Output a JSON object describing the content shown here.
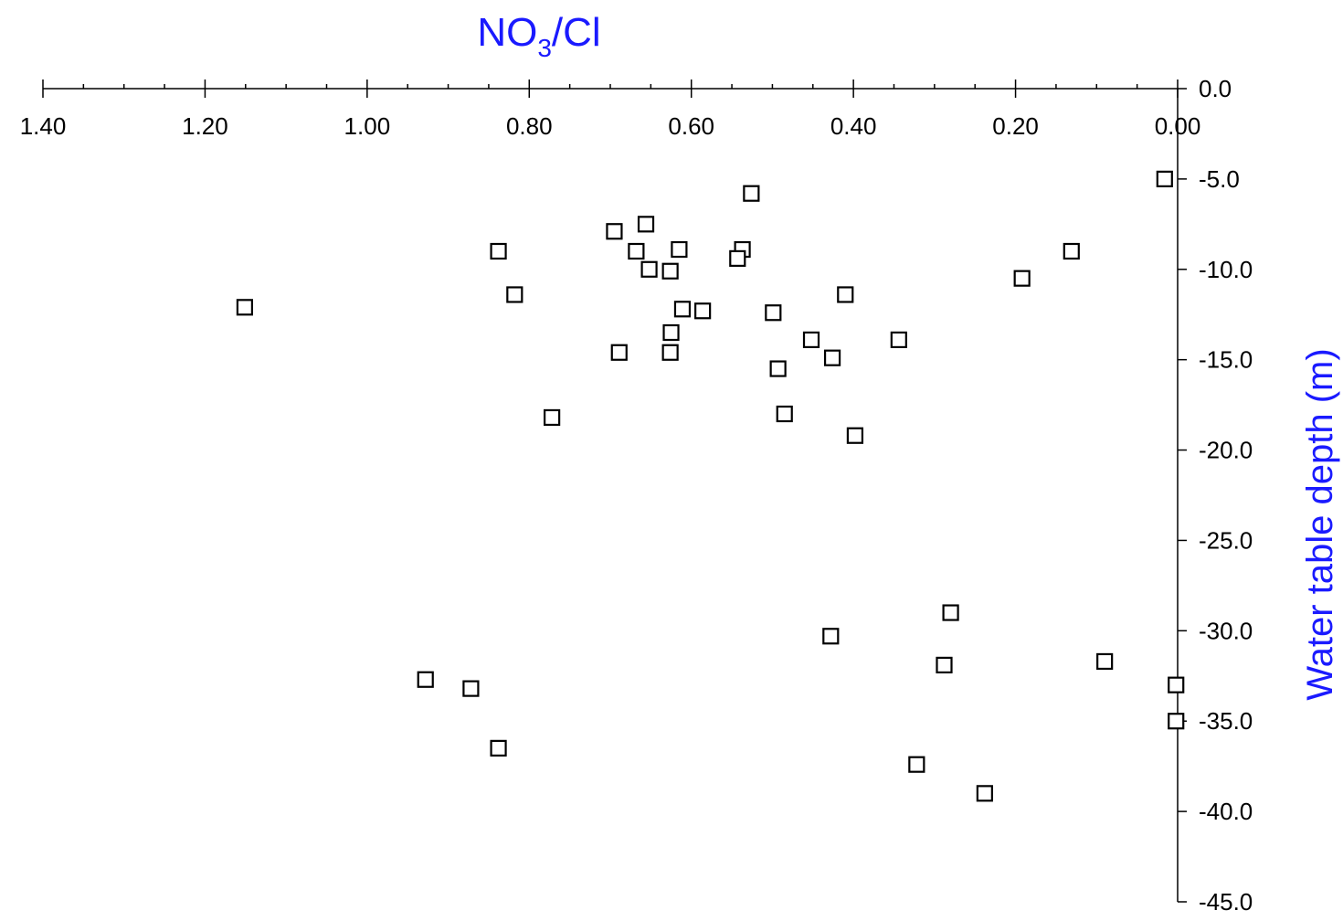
{
  "chart_data": {
    "type": "scatter",
    "title": {
      "main": "NO",
      "sub": "3",
      "tail": "/Cl"
    },
    "xlabel": "",
    "ylabel": "Water table depth (m)",
    "x_axis_position": "top",
    "y_axis_position": "right",
    "x_reversed": true,
    "xlim": [
      0,
      1.4
    ],
    "ylim": [
      -45,
      0
    ],
    "x_ticks": [
      {
        "value": 1.4,
        "label": "1.40"
      },
      {
        "value": 1.2,
        "label": "1.20"
      },
      {
        "value": 1.0,
        "label": "1.00"
      },
      {
        "value": 0.8,
        "label": "0.80"
      },
      {
        "value": 0.6,
        "label": "0.60"
      },
      {
        "value": 0.4,
        "label": "0.40"
      },
      {
        "value": 0.2,
        "label": "0.20"
      },
      {
        "value": 0.0,
        "label": "0.00"
      }
    ],
    "y_ticks": [
      {
        "value": 0,
        "label": "0.0"
      },
      {
        "value": -5,
        "label": "-5.0"
      },
      {
        "value": -10,
        "label": "-10.0"
      },
      {
        "value": -15,
        "label": "-15.0"
      },
      {
        "value": -20,
        "label": "-20.0"
      },
      {
        "value": -25,
        "label": "-25.0"
      },
      {
        "value": -30,
        "label": "-30.0"
      },
      {
        "value": -35,
        "label": "-35.0"
      },
      {
        "value": -40,
        "label": "-40.0"
      },
      {
        "value": -45,
        "label": "-45.0"
      }
    ],
    "grid": false,
    "marker": "open-square",
    "points": [
      {
        "x": 0.016,
        "y": -5.0
      },
      {
        "x": 0.526,
        "y": -5.8
      },
      {
        "x": 0.656,
        "y": -7.5
      },
      {
        "x": 0.695,
        "y": -7.9
      },
      {
        "x": 0.838,
        "y": -9.0
      },
      {
        "x": 0.668,
        "y": -9.0
      },
      {
        "x": 0.615,
        "y": -8.9
      },
      {
        "x": 0.537,
        "y": -8.9
      },
      {
        "x": 0.543,
        "y": -9.4
      },
      {
        "x": 0.652,
        "y": -10.0
      },
      {
        "x": 0.626,
        "y": -10.1
      },
      {
        "x": 0.131,
        "y": -9.0
      },
      {
        "x": 0.192,
        "y": -10.5
      },
      {
        "x": 1.151,
        "y": -12.1
      },
      {
        "x": 0.818,
        "y": -11.4
      },
      {
        "x": 0.611,
        "y": -12.2
      },
      {
        "x": 0.586,
        "y": -12.3
      },
      {
        "x": 0.499,
        "y": -12.4
      },
      {
        "x": 0.41,
        "y": -11.4
      },
      {
        "x": 0.625,
        "y": -13.5
      },
      {
        "x": 0.452,
        "y": -13.9
      },
      {
        "x": 0.344,
        "y": -13.9
      },
      {
        "x": 0.689,
        "y": -14.6
      },
      {
        "x": 0.626,
        "y": -14.6
      },
      {
        "x": 0.426,
        "y": -14.9
      },
      {
        "x": 0.493,
        "y": -15.5
      },
      {
        "x": 0.772,
        "y": -18.2
      },
      {
        "x": 0.485,
        "y": -18.0
      },
      {
        "x": 0.398,
        "y": -19.2
      },
      {
        "x": 0.28,
        "y": -29.0
      },
      {
        "x": 0.428,
        "y": -30.3
      },
      {
        "x": 0.288,
        "y": -31.9
      },
      {
        "x": 0.09,
        "y": -31.7
      },
      {
        "x": 0.002,
        "y": -33.0
      },
      {
        "x": 0.002,
        "y": -35.0
      },
      {
        "x": 0.928,
        "y": -32.7
      },
      {
        "x": 0.872,
        "y": -33.2
      },
      {
        "x": 0.838,
        "y": -36.5
      },
      {
        "x": 0.322,
        "y": -37.4
      },
      {
        "x": 0.238,
        "y": -39.0
      }
    ]
  }
}
